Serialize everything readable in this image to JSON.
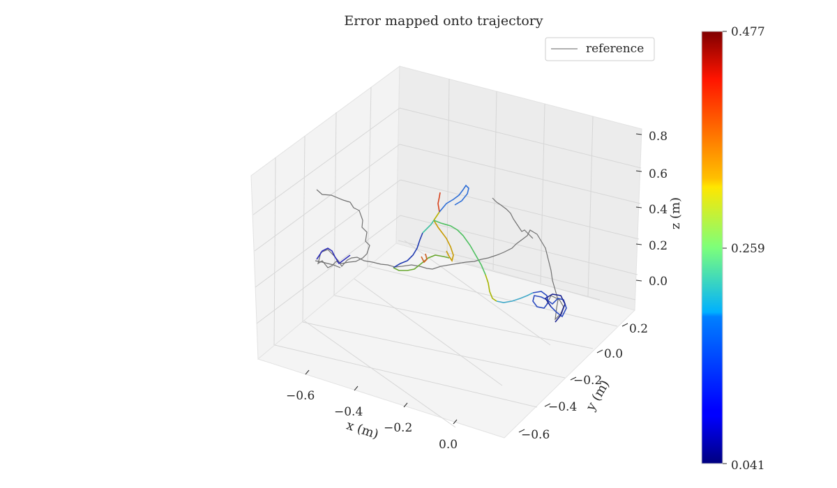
{
  "chart_data": {
    "type": "line",
    "projection": "3d",
    "title": "Error mapped onto trajectory",
    "xlabel": "x (m)",
    "ylabel": "y (m)",
    "zlabel": "z (m)",
    "x_ticks": [
      "−0.6",
      "−0.4",
      "−0.2",
      "0.0"
    ],
    "y_ticks": [
      "0.2",
      "0.0",
      "−0.2",
      "−0.4",
      "−0.6"
    ],
    "z_ticks": [
      "0.8",
      "0.6",
      "0.4",
      "0.2",
      "0.0"
    ],
    "legend": {
      "placement": "top-right",
      "entries": [
        {
          "label": "reference",
          "color": "#808080"
        }
      ]
    },
    "colorbar": {
      "colormap": "jet",
      "min_label": "0.041",
      "mid_label": "0.259",
      "max_label": "0.477",
      "min": 0.041,
      "mid": 0.259,
      "max": 0.477
    },
    "grid": true,
    "series": [
      {
        "name": "reference",
        "color": "#808080"
      }
    ]
  }
}
